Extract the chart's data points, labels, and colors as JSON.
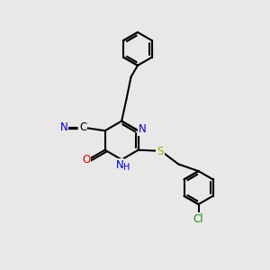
{
  "bg_color": "#e8e8e8",
  "bond_color": "#000000",
  "bond_width": 1.5,
  "dbo": 0.055,
  "atom_colors": {
    "N": "#0000cc",
    "O": "#dd0000",
    "S": "#aaaa00",
    "Cl": "#228822"
  },
  "font_size": 8.5,
  "ring_r": 0.72,
  "ar_r": 0.62,
  "shrink": 0.1
}
